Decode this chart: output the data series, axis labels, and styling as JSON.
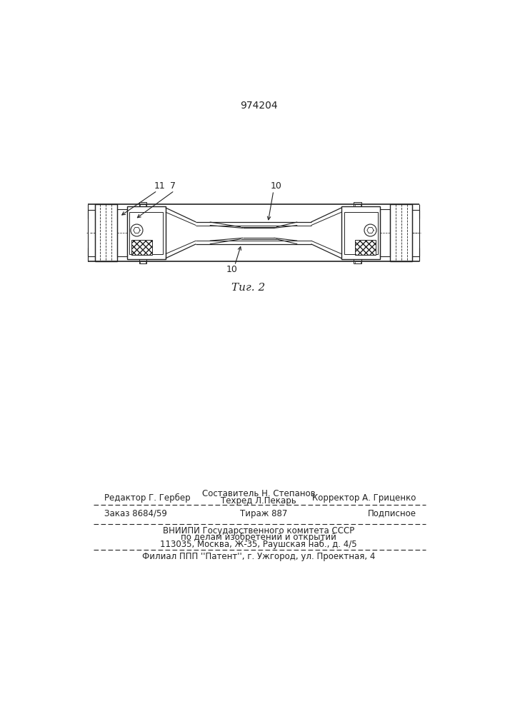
{
  "patent_number": "974204",
  "fig_label": "Τиг. 2",
  "background_color": "#ffffff",
  "line_color": "#222222",
  "label_11": "11",
  "label_7": "7",
  "label_10a": "10",
  "label_10b": "10",
  "footer_editor": "Редактор Г. Гербер",
  "footer_comp1": "Составитель Н. Степанов",
  "footer_tech": "Техред Л.Пекарь",
  "footer_corr": "Корректор А. Гриценко",
  "footer_order": "Заказ 8684/59",
  "footer_tirazh": "Тираж 887",
  "footer_podp": "Подписное",
  "footer_vniipи": "ВНИИПИ Государственного комитета СССР",
  "footer_dela": "по делам изобретений и открытий",
  "footer_addr": "113035, Москва, Ж-35, Раушская наб., д. 4/5",
  "footer_filial": "Филиал ППП ''Патент'', г. Ужгород, ул. Проектная, 4"
}
